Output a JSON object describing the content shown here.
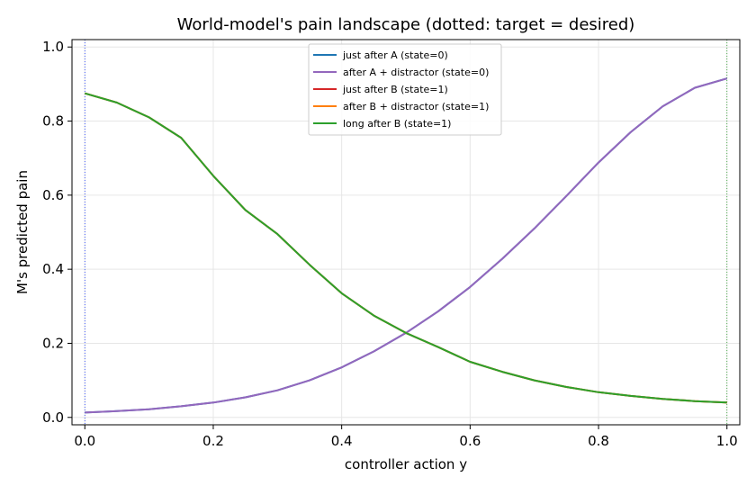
{
  "chart_data": {
    "type": "line",
    "title": "World-model's pain landscape  (dotted: target = desired)",
    "xlabel": "controller action  y",
    "ylabel": "M's predicted pain",
    "xlim": [
      -0.02,
      1.02
    ],
    "ylim": [
      -0.02,
      1.02
    ],
    "xticks": [
      0.0,
      0.2,
      0.4,
      0.6,
      0.8,
      1.0
    ],
    "xtick_labels": [
      "0.0",
      "0.2",
      "0.4",
      "0.6",
      "0.8",
      "1.0"
    ],
    "yticks": [
      0.0,
      0.2,
      0.4,
      0.6,
      0.8,
      1.0
    ],
    "ytick_labels": [
      "0.0",
      "0.2",
      "0.4",
      "0.6",
      "0.8",
      "1.0"
    ],
    "grid": true,
    "legend_position": "top-center",
    "x": [
      0.0,
      0.05,
      0.1,
      0.15,
      0.2,
      0.25,
      0.3,
      0.35,
      0.4,
      0.45,
      0.5,
      0.55,
      0.6,
      0.65,
      0.7,
      0.75,
      0.8,
      0.85,
      0.9,
      0.95,
      1.0
    ],
    "series": [
      {
        "name": "just after A (state=0)",
        "color": "#1f77b4",
        "values": [
          0.013,
          0.017,
          0.022,
          0.03,
          0.04,
          0.054,
          0.073,
          0.1,
          0.135,
          0.178,
          0.228,
          0.286,
          0.352,
          0.428,
          0.51,
          0.598,
          0.688,
          0.77,
          0.84,
          0.89,
          0.915
        ]
      },
      {
        "name": "after A + distractor (state=0)",
        "color": "#9467bd",
        "values": [
          0.013,
          0.017,
          0.022,
          0.03,
          0.04,
          0.054,
          0.073,
          0.1,
          0.135,
          0.178,
          0.228,
          0.286,
          0.352,
          0.428,
          0.51,
          0.598,
          0.688,
          0.77,
          0.84,
          0.89,
          0.915
        ]
      },
      {
        "name": "just after B (state=1)",
        "color": "#d62728",
        "values": [
          0.875,
          0.85,
          0.81,
          0.755,
          0.652,
          0.56,
          0.495,
          0.412,
          0.335,
          0.275,
          0.228,
          0.19,
          0.15,
          0.123,
          0.1,
          0.082,
          0.068,
          0.058,
          0.05,
          0.044,
          0.04
        ]
      },
      {
        "name": "after B + distractor (state=1)",
        "color": "#ff7f0e",
        "values": [
          0.875,
          0.85,
          0.81,
          0.755,
          0.652,
          0.56,
          0.495,
          0.412,
          0.335,
          0.275,
          0.228,
          0.19,
          0.15,
          0.123,
          0.1,
          0.082,
          0.068,
          0.058,
          0.05,
          0.044,
          0.04
        ]
      },
      {
        "name": "long after B (state=1)",
        "color": "#2ca02c",
        "values": [
          0.875,
          0.85,
          0.81,
          0.755,
          0.652,
          0.56,
          0.495,
          0.412,
          0.335,
          0.275,
          0.228,
          0.19,
          0.15,
          0.123,
          0.1,
          0.082,
          0.068,
          0.058,
          0.05,
          0.044,
          0.04
        ]
      }
    ],
    "target_lines": [
      {
        "x": 0.0,
        "color": "#1f3bff"
      },
      {
        "x": 1.0,
        "color": "#2ca02c"
      }
    ]
  }
}
